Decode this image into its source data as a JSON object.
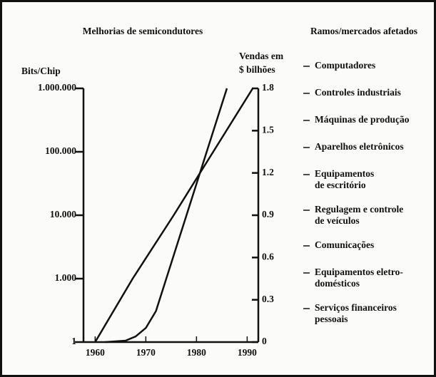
{
  "chart_data": {
    "type": "line",
    "title": "Melhorias de semicondutores",
    "ylabel": "Bits/Chip",
    "y2label": [
      "Vendas em",
      "$ bilhões"
    ],
    "xlim": [
      1957.7,
      1992.2
    ],
    "xticks": [
      1960,
      1970,
      1980,
      1990
    ],
    "ylim": [
      1,
      1000000
    ],
    "yscale": "log",
    "yticks": [
      1,
      {
        "value": 1000,
        "label": "1.000"
      },
      {
        "value": 10000,
        "label": "10.000"
      },
      {
        "value": 100000,
        "label": "100.000"
      },
      {
        "value": 1000000,
        "label": "1.000.000"
      }
    ],
    "y2lim": [
      0,
      1.8
    ],
    "y2ticks": [
      0,
      0.3,
      0.6,
      0.9,
      1.2,
      1.5,
      1.8
    ],
    "series": [
      {
        "color": "#111111",
        "x": [
          1960,
          1967.4,
          1975.5,
          1983.3,
          1991.1
        ],
        "values": [
          1,
          1000,
          10000,
          100000,
          1000000
        ]
      },
      {
        "color": "#111111",
        "axis": "y2",
        "x": [
          1962,
          1966,
          1968,
          1970,
          1972,
          1986
        ],
        "values": [
          0,
          0.01,
          0.04,
          0.1,
          0.22,
          1.8
        ]
      }
    ]
  },
  "sidebar": {
    "title": "Ramos/mercados afetados",
    "items": [
      [
        "Computadores"
      ],
      [
        "Controles industriais"
      ],
      [
        "Máquinas de produção"
      ],
      [
        "Aparelhos eletrônicos"
      ],
      [
        "Equipamentos",
        "de escritório"
      ],
      [
        "Regulagem e controle",
        "de veículos"
      ],
      [
        "Comunicações"
      ],
      [
        "Equipamentos eletro-",
        "domésticos"
      ],
      [
        "Serviços financeiros",
        "pessoais"
      ]
    ]
  }
}
